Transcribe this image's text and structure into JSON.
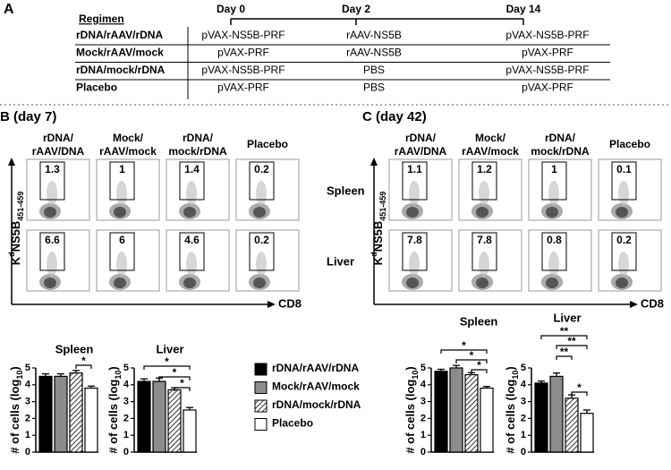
{
  "panel_a": {
    "label": "A",
    "headers": [
      "Regimen",
      "Day 0",
      "Day 2",
      "Day 14"
    ],
    "rows": [
      [
        "rDNA/rAAV/rDNA",
        "pVAX-NS5B-PRF",
        "rAAV-NS5B",
        "pVAX-NS5B-PRF"
      ],
      [
        "Mock/rAAV/mock",
        "pVAX-PRF",
        "rAAV-NS5B",
        "pVAX-PRF"
      ],
      [
        "rDNA/mock/rDNA",
        "pVAX-NS5B-PRF",
        "PBS",
        "pVAX-NS5B-PRF"
      ],
      [
        "Placebo",
        "pVAX-PRF",
        "PBS",
        "pVAX-PRF"
      ]
    ]
  },
  "panel_b": {
    "label": "B (day 7)",
    "groups": [
      [
        "rDNA/",
        "rAAV/DNA"
      ],
      [
        "Mock/",
        "rAAV/mock"
      ],
      [
        "rDNA/",
        "mock/rDNA"
      ],
      [
        "Placebo"
      ]
    ],
    "tissues": [
      "Spleen",
      "Liver"
    ],
    "gates": [
      [
        1.3,
        1,
        1.4,
        0.2
      ],
      [
        6.6,
        6,
        4.6,
        0.2
      ]
    ],
    "x_axis": "CD8",
    "y_axis": [
      "K",
      "d",
      "NS5B",
      "451-459"
    ]
  },
  "panel_c": {
    "label": "C (day 42)",
    "groups": [
      [
        "rDNA/",
        "rAAV/DNA"
      ],
      [
        "Mock/",
        "rAAV/mock"
      ],
      [
        "rDNA/",
        "mock/rDNA"
      ],
      [
        "Placebo"
      ]
    ],
    "gates": [
      [
        1.1,
        1.2,
        1,
        0.1
      ],
      [
        7.8,
        7.8,
        0.8,
        0.2
      ]
    ],
    "x_axis": "CD8",
    "y_axis": [
      "K",
      "d",
      "NS5B",
      "451-459"
    ]
  },
  "legend": [
    {
      "name": "rDNA/rAAV/rDNA",
      "fill": "#000000"
    },
    {
      "name": "Mock/rAAV/mock",
      "fill": "#8c8c8c"
    },
    {
      "name": "rDNA/mock/rDNA",
      "fill": "hatched"
    },
    {
      "name": "Placebo",
      "fill": "#ffffff"
    }
  ],
  "bar_ylabel": [
    "# of cells (log",
    "10",
    ")"
  ],
  "bar_charts": [
    {
      "type": "bar",
      "title": "Spleen",
      "values": [
        4.5,
        4.5,
        4.7,
        3.8
      ],
      "errors": [
        0.15,
        0.15,
        0.15,
        0.12
      ],
      "ylim": [
        0,
        5
      ],
      "yticks": [
        0,
        1,
        2,
        3,
        4,
        5
      ],
      "significance": [
        "*"
      ]
    },
    {
      "type": "bar",
      "title": "Liver",
      "values": [
        4.2,
        4.2,
        3.7,
        2.5
      ],
      "errors": [
        0.15,
        0.2,
        0.12,
        0.15
      ],
      "ylim": [
        0,
        5
      ],
      "yticks": [
        0,
        1,
        2,
        3,
        4,
        5
      ],
      "significance": [
        "*",
        "*",
        "*"
      ]
    },
    {
      "type": "bar",
      "title": "Spleen",
      "values": [
        4.8,
        5.0,
        4.6,
        3.8
      ],
      "errors": [
        0.12,
        0.15,
        0.12,
        0.1
      ],
      "ylim": [
        0,
        5
      ],
      "yticks": [
        0,
        1,
        2,
        3,
        4,
        5
      ],
      "significance": [
        "*",
        "*",
        "*"
      ]
    },
    {
      "type": "bar",
      "title": "Liver",
      "values": [
        4.1,
        4.5,
        3.2,
        2.3
      ],
      "errors": [
        0.12,
        0.2,
        0.2,
        0.2
      ],
      "ylim": [
        0,
        5
      ],
      "yticks": [
        0,
        1,
        2,
        3,
        4,
        5
      ],
      "significance": [
        "**",
        "**",
        "**",
        "*"
      ]
    }
  ]
}
